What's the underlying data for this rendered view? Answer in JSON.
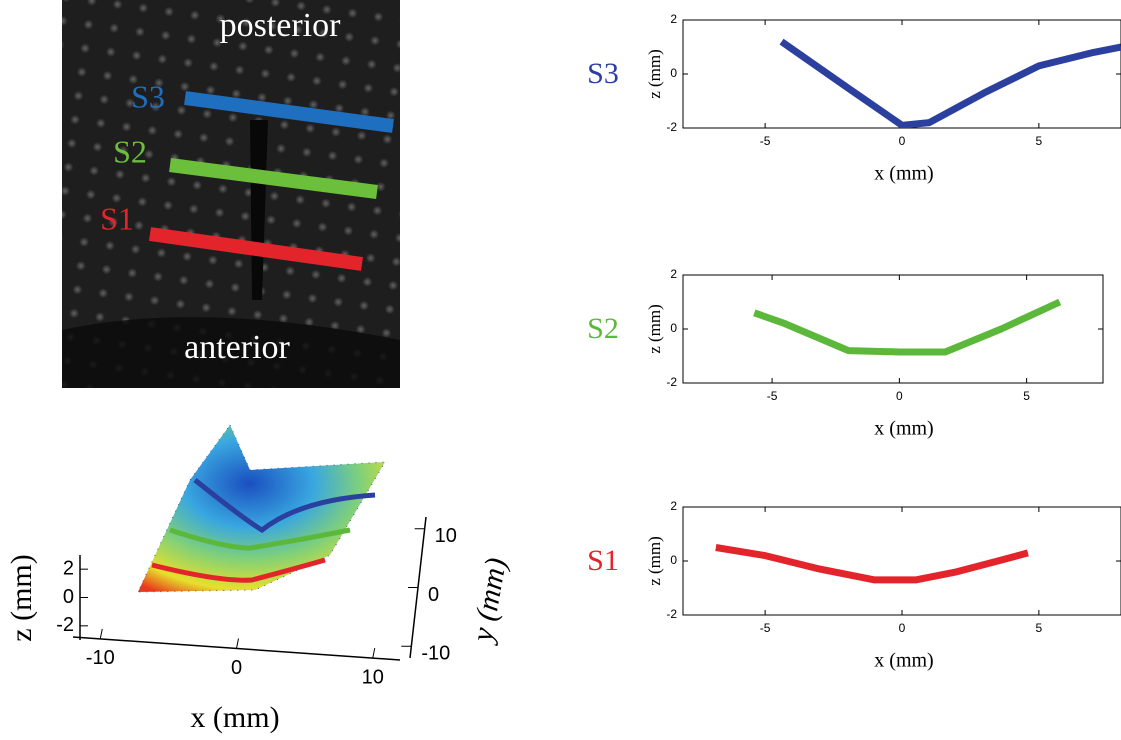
{
  "image": {
    "top_label": "posterior",
    "bottom_label": "anterior",
    "sections": [
      {
        "name": "S3",
        "color": "#1f6fc0"
      },
      {
        "name": "S2",
        "color": "#6cbf3a"
      },
      {
        "name": "S1",
        "color": "#e3242b"
      }
    ]
  },
  "chart_data": [
    {
      "type": "line",
      "xlabel": "x (mm)",
      "ylabel": "z (mm)",
      "xlim": [
        -8,
        8
      ],
      "ylim": [
        -2,
        2
      ],
      "xticks": [
        -5,
        0,
        5
      ],
      "yticks": [
        -2,
        0,
        2
      ],
      "x": [
        -4.4,
        -2,
        0,
        1,
        3,
        5,
        7,
        8
      ],
      "series": [
        {
          "name": "S3",
          "color": "#2b3f9e",
          "values": [
            1.2,
            -0.5,
            -1.9,
            -1.8,
            -0.7,
            0.3,
            0.8,
            1.0
          ]
        }
      ]
    },
    {
      "type": "line",
      "xlabel": "x (mm)",
      "ylabel": "z (mm)",
      "xlim": [
        -8.5,
        8
      ],
      "ylim": [
        -2,
        2
      ],
      "xticks": [
        -5,
        0,
        5
      ],
      "yticks": [
        -2,
        0,
        2
      ],
      "x": [
        -5.7,
        -4.5,
        -2,
        0,
        1.8,
        4,
        6.3
      ],
      "series": [
        {
          "name": "S2",
          "color": "#5cb83a",
          "values": [
            0.6,
            0.2,
            -0.8,
            -0.85,
            -0.85,
            0,
            1.0
          ]
        }
      ]
    },
    {
      "type": "line",
      "xlabel": "x (mm)",
      "ylabel": "z (mm)",
      "xlim": [
        -8,
        8
      ],
      "ylim": [
        -2,
        2
      ],
      "xticks": [
        -5,
        0,
        5
      ],
      "yticks": [
        -2,
        0,
        2
      ],
      "x": [
        -6.8,
        -5,
        -3,
        -1,
        0.5,
        2,
        3.5,
        4.6
      ],
      "series": [
        {
          "name": "S1",
          "color": "#e3242b",
          "values": [
            0.5,
            0.2,
            -0.3,
            -0.7,
            -0.7,
            -0.4,
            0,
            0.3
          ]
        }
      ]
    },
    {
      "type": "surface3d",
      "xlabel": "x (mm)",
      "ylabel": "y (mm)",
      "zlabel": "z (mm)",
      "xlim": [
        -12,
        12
      ],
      "ylim": [
        -12,
        12
      ],
      "zlim": [
        -3,
        3
      ],
      "xticks": [
        -10,
        0,
        10
      ],
      "yticks": [
        -10,
        0,
        10
      ],
      "zticks": [
        -2,
        0,
        2
      ]
    }
  ]
}
